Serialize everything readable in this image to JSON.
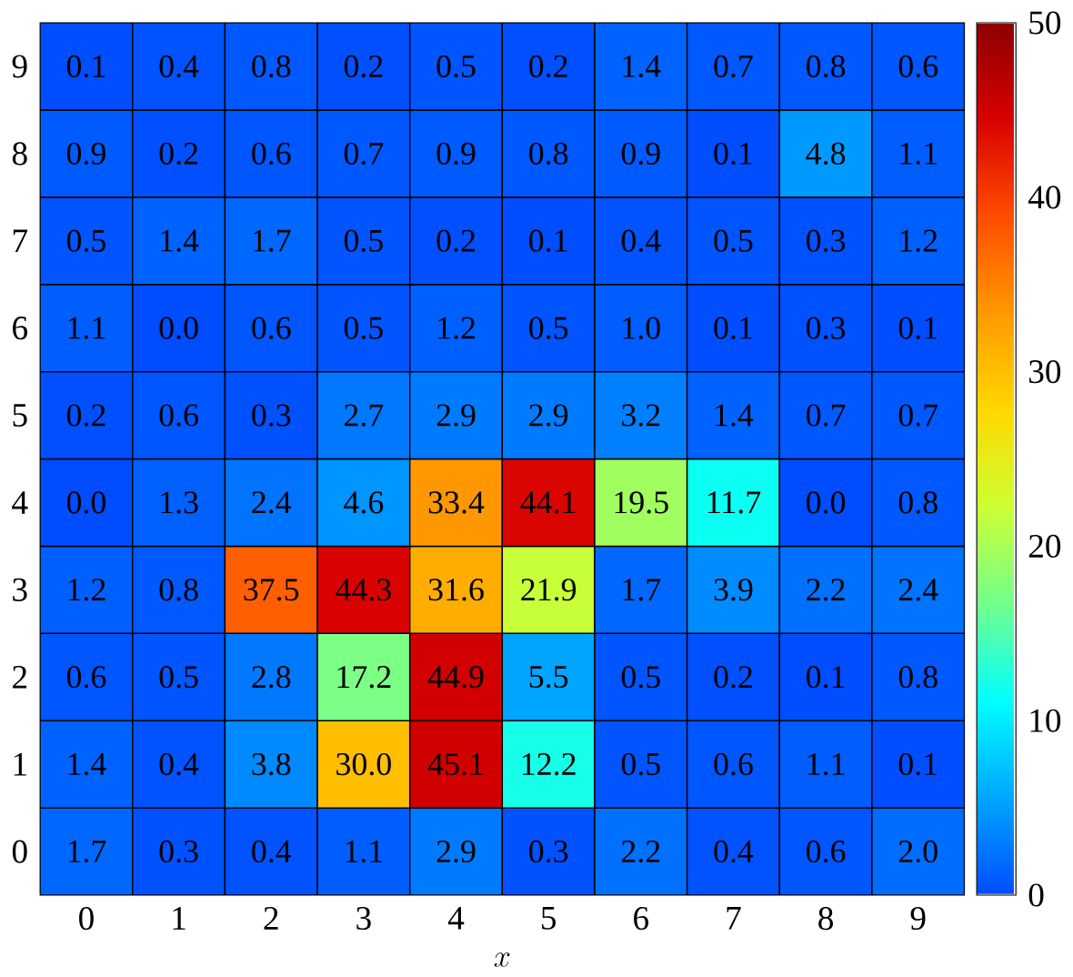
{
  "chart_data": {
    "type": "heatmap",
    "xlabel": "x",
    "categories": [
      "0",
      "1",
      "2",
      "3",
      "4",
      "5",
      "6",
      "7",
      "8",
      "9"
    ],
    "y_categories": [
      "9",
      "8",
      "7",
      "6",
      "5",
      "4",
      "3",
      "2",
      "1",
      "0"
    ],
    "cells": [
      [
        0.1,
        0.4,
        0.8,
        0.2,
        0.5,
        0.2,
        1.4,
        0.7,
        0.8,
        0.6
      ],
      [
        0.9,
        0.2,
        0.6,
        0.7,
        0.9,
        0.8,
        0.9,
        0.1,
        4.8,
        1.1
      ],
      [
        0.5,
        1.4,
        1.7,
        0.5,
        0.2,
        0.1,
        0.4,
        0.5,
        0.3,
        1.2
      ],
      [
        1.1,
        0.0,
        0.6,
        0.5,
        1.2,
        0.5,
        1.0,
        0.1,
        0.3,
        0.1
      ],
      [
        0.2,
        0.6,
        0.3,
        2.7,
        2.9,
        2.9,
        3.2,
        1.4,
        0.7,
        0.7
      ],
      [
        0.0,
        1.3,
        2.4,
        4.6,
        33.4,
        44.1,
        19.5,
        11.7,
        0.0,
        0.8
      ],
      [
        1.2,
        0.8,
        37.5,
        44.3,
        31.6,
        21.9,
        1.7,
        3.9,
        2.2,
        2.4
      ],
      [
        0.6,
        0.5,
        2.8,
        17.2,
        44.9,
        5.5,
        0.5,
        0.2,
        0.1,
        0.8
      ],
      [
        1.4,
        0.4,
        3.8,
        30.0,
        45.1,
        12.2,
        0.5,
        0.6,
        1.1,
        0.1
      ],
      [
        1.7,
        0.3,
        0.4,
        1.1,
        2.9,
        0.3,
        2.2,
        0.4,
        0.6,
        2.0
      ]
    ],
    "cell_labels": [
      [
        "0.1",
        "0.4",
        "0.8",
        "0.2",
        "0.5",
        "0.2",
        "1.4",
        "0.7",
        "0.8",
        "0.6"
      ],
      [
        "0.9",
        "0.2",
        "0.6",
        "0.7",
        "0.9",
        "0.8",
        "0.9",
        "0.1",
        "4.8",
        "1.1"
      ],
      [
        "0.5",
        "1.4",
        "1.7",
        "0.5",
        "0.2",
        "0.1",
        "0.4",
        "0.5",
        "0.3",
        "1.2"
      ],
      [
        "1.1",
        "0.0",
        "0.6",
        "0.5",
        "1.2",
        "0.5",
        "1.0",
        "0.1",
        "0.3",
        "0.1"
      ],
      [
        "0.2",
        "0.6",
        "0.3",
        "2.7",
        "2.9",
        "2.9",
        "3.2",
        "1.4",
        "0.7",
        "0.7"
      ],
      [
        "0.0",
        "1.3",
        "2.4",
        "4.6",
        "33.4",
        "44.1",
        "19.5",
        "11.7",
        "0.0",
        "0.8"
      ],
      [
        "1.2",
        "0.8",
        "37.5",
        "44.3",
        "31.6",
        "21.9",
        "1.7",
        "3.9",
        "2.2",
        "2.4"
      ],
      [
        "0.6",
        "0.5",
        "2.8",
        "17.2",
        "44.9",
        "5.5",
        "0.5",
        "0.2",
        "0.1",
        "0.8"
      ],
      [
        "1.4",
        "0.4",
        "3.8",
        "30.0",
        "45.1",
        "12.2",
        "0.5",
        "0.6",
        "1.1",
        "0.1"
      ],
      [
        "1.7",
        "0.3",
        "0.4",
        "1.1",
        "2.9",
        "0.3",
        "2.2",
        "0.4",
        "0.6",
        "2.0"
      ]
    ],
    "clim": [
      0,
      50
    ],
    "cticks": [
      0,
      10,
      20,
      30,
      40,
      50
    ]
  }
}
